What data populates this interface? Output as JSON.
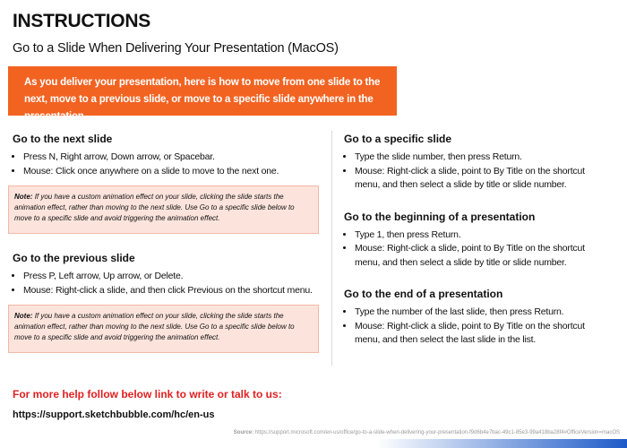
{
  "header": {
    "title": "INSTRUCTIONS",
    "subtitle": "Go to a Slide When Delivering Your Presentation (MacOS)"
  },
  "banner": "As you deliver your presentation, here is how to move from one slide to the next, move to a previous slide, or move to a specific slide anywhere in the presentation.",
  "left": [
    {
      "heading": "Go to the next slide",
      "bullets": [
        "Press N, Right arrow, Down arrow, or Spacebar.",
        "Mouse: Click once anywhere on a slide to move to the next one."
      ],
      "note": {
        "label": "Note:",
        "text": "If you have a custom animation effect on your slide, clicking the slide starts the animation effect, rather than moving to the next slide. Use Go to a specific slide below to move to a specific slide and avoid triggering the animation effect."
      }
    },
    {
      "heading": "Go to the previous slide",
      "bullets": [
        "Press P, Left arrow, Up arrow, or Delete.",
        "Mouse: Right-click a slide, and then click Previous on the shortcut menu."
      ],
      "note": {
        "label": "Note:",
        "text": "If you have a custom animation effect on your slide, clicking the slide starts the animation effect, rather than moving to the next slide. Use Go to a specific slide below to move to a specific slide and avoid triggering the animation effect."
      }
    }
  ],
  "right": [
    {
      "heading": "Go to a specific slide",
      "bullets": [
        "Type the slide number, then press Return.",
        "Mouse: Right-click a slide, point to By Title on the shortcut menu, and then select a slide by title or slide number."
      ]
    },
    {
      "heading": "Go to the beginning of a presentation",
      "bullets": [
        "Type 1, then press Return.",
        "Mouse: Right-click a slide, point to By Title on the shortcut menu, and then select a slide by title or slide number."
      ]
    },
    {
      "heading": "Go to the end of a presentation",
      "bullets": [
        "Type the number of the last slide, then press Return.",
        "Mouse: Right-click a slide, point to By Title on the shortcut menu, and then select the last slide in the list."
      ]
    }
  ],
  "footer": {
    "help": "For more help follow below link to write or talk to us:",
    "link": "https://support.sketchbubble.com/hc/en-us",
    "source_label": "Source:",
    "source_url": "https://support.microsoft.com/en-us/office/go-to-a-slide-when-delivering-your-presentation-f9d6b4e7bac-49c1-85e3-99a418ba28f4#OfficeVersion=macOS"
  }
}
